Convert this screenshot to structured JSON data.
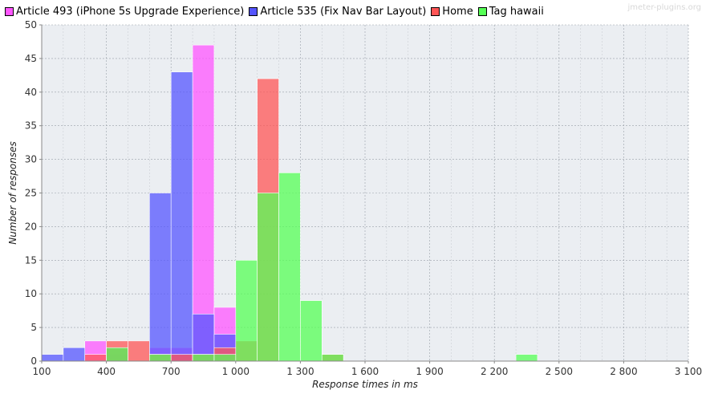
{
  "watermark": "jmeter-plugins.org",
  "chart_data": {
    "type": "bar",
    "subtype": "histogram",
    "xlabel": "Response times in ms",
    "ylabel": "Number of responses",
    "xlim": [
      100,
      3100
    ],
    "ylim": [
      0,
      50
    ],
    "x_ticks": [
      100,
      400,
      700,
      1000,
      1300,
      1600,
      1900,
      2200,
      2500,
      2800,
      3100
    ],
    "x_tick_labels": [
      "100",
      "400",
      "700",
      "1 000",
      "1 300",
      "1 600",
      "1 900",
      "2 200",
      "2 500",
      "2 800",
      "3 100"
    ],
    "y_ticks": [
      0,
      5,
      10,
      15,
      20,
      25,
      30,
      35,
      40,
      45,
      50
    ],
    "bin_width": 100,
    "grid": true,
    "legend_position": "top",
    "series": [
      {
        "name": "Article 493 (iPhone 5s Upgrade Experience)",
        "color": "#ff55ff",
        "bins": [
          [
            300,
            3
          ],
          [
            400,
            1
          ],
          [
            600,
            2
          ],
          [
            700,
            2
          ],
          [
            800,
            47
          ],
          [
            900,
            8
          ]
        ]
      },
      {
        "name": "Article 535 (Fix Nav Bar Layout)",
        "color": "#5555ff",
        "bins": [
          [
            100,
            1
          ],
          [
            200,
            2
          ],
          [
            400,
            2
          ],
          [
            600,
            25
          ],
          [
            700,
            43
          ],
          [
            800,
            7
          ],
          [
            900,
            4
          ]
        ]
      },
      {
        "name": "Home",
        "color": "#ff5555",
        "bins": [
          [
            300,
            1
          ],
          [
            400,
            3
          ],
          [
            500,
            3
          ],
          [
            600,
            1
          ],
          [
            700,
            1
          ],
          [
            800,
            1
          ],
          [
            900,
            2
          ],
          [
            1000,
            3
          ],
          [
            1100,
            42
          ],
          [
            1400,
            1
          ]
        ]
      },
      {
        "name": "Tag hawaii",
        "color": "#55ff55",
        "bins": [
          [
            400,
            2
          ],
          [
            600,
            1
          ],
          [
            800,
            1
          ],
          [
            900,
            1
          ],
          [
            1000,
            15
          ],
          [
            1100,
            25
          ],
          [
            1200,
            28
          ],
          [
            1300,
            9
          ],
          [
            1400,
            1
          ],
          [
            2300,
            1
          ]
        ]
      }
    ]
  }
}
